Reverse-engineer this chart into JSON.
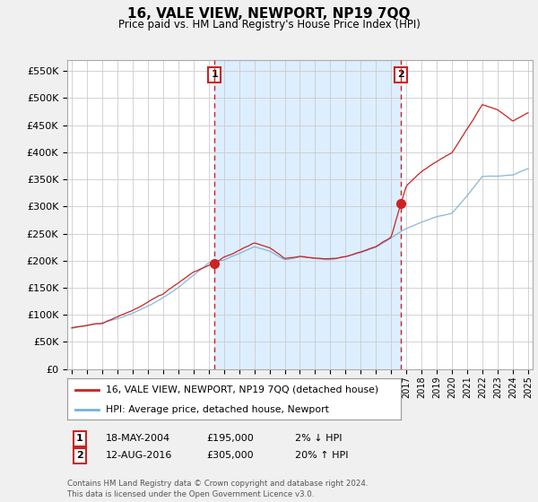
{
  "title": "16, VALE VIEW, NEWPORT, NP19 7QQ",
  "subtitle": "Price paid vs. HM Land Registry's House Price Index (HPI)",
  "ylim": [
    0,
    570000
  ],
  "yticks": [
    0,
    50000,
    100000,
    150000,
    200000,
    250000,
    300000,
    350000,
    400000,
    450000,
    500000,
    550000
  ],
  "ytick_labels": [
    "£0",
    "£50K",
    "£100K",
    "£150K",
    "£200K",
    "£250K",
    "£300K",
    "£350K",
    "£400K",
    "£450K",
    "£500K",
    "£550K"
  ],
  "hpi_color": "#7ab0d4",
  "price_color": "#cc2222",
  "vline_color": "#cc2222",
  "shade_color": "#ddeeff",
  "marker1_year": 2004.38,
  "marker2_year": 2016.62,
  "marker1_price": 195000,
  "marker2_price": 305000,
  "legend_line1": "16, VALE VIEW, NEWPORT, NP19 7QQ (detached house)",
  "legend_line2": "HPI: Average price, detached house, Newport",
  "annotation1_label": "1",
  "annotation1_date": "18-MAY-2004",
  "annotation1_price": "£195,000",
  "annotation1_hpi": "2% ↓ HPI",
  "annotation2_label": "2",
  "annotation2_date": "12-AUG-2016",
  "annotation2_price": "£305,000",
  "annotation2_hpi": "20% ↑ HPI",
  "footer": "Contains HM Land Registry data © Crown copyright and database right 2024.\nThis data is licensed under the Open Government Licence v3.0.",
  "background_color": "#f0f0f0",
  "plot_bg_color": "#ffffff",
  "grid_color": "#cccccc"
}
